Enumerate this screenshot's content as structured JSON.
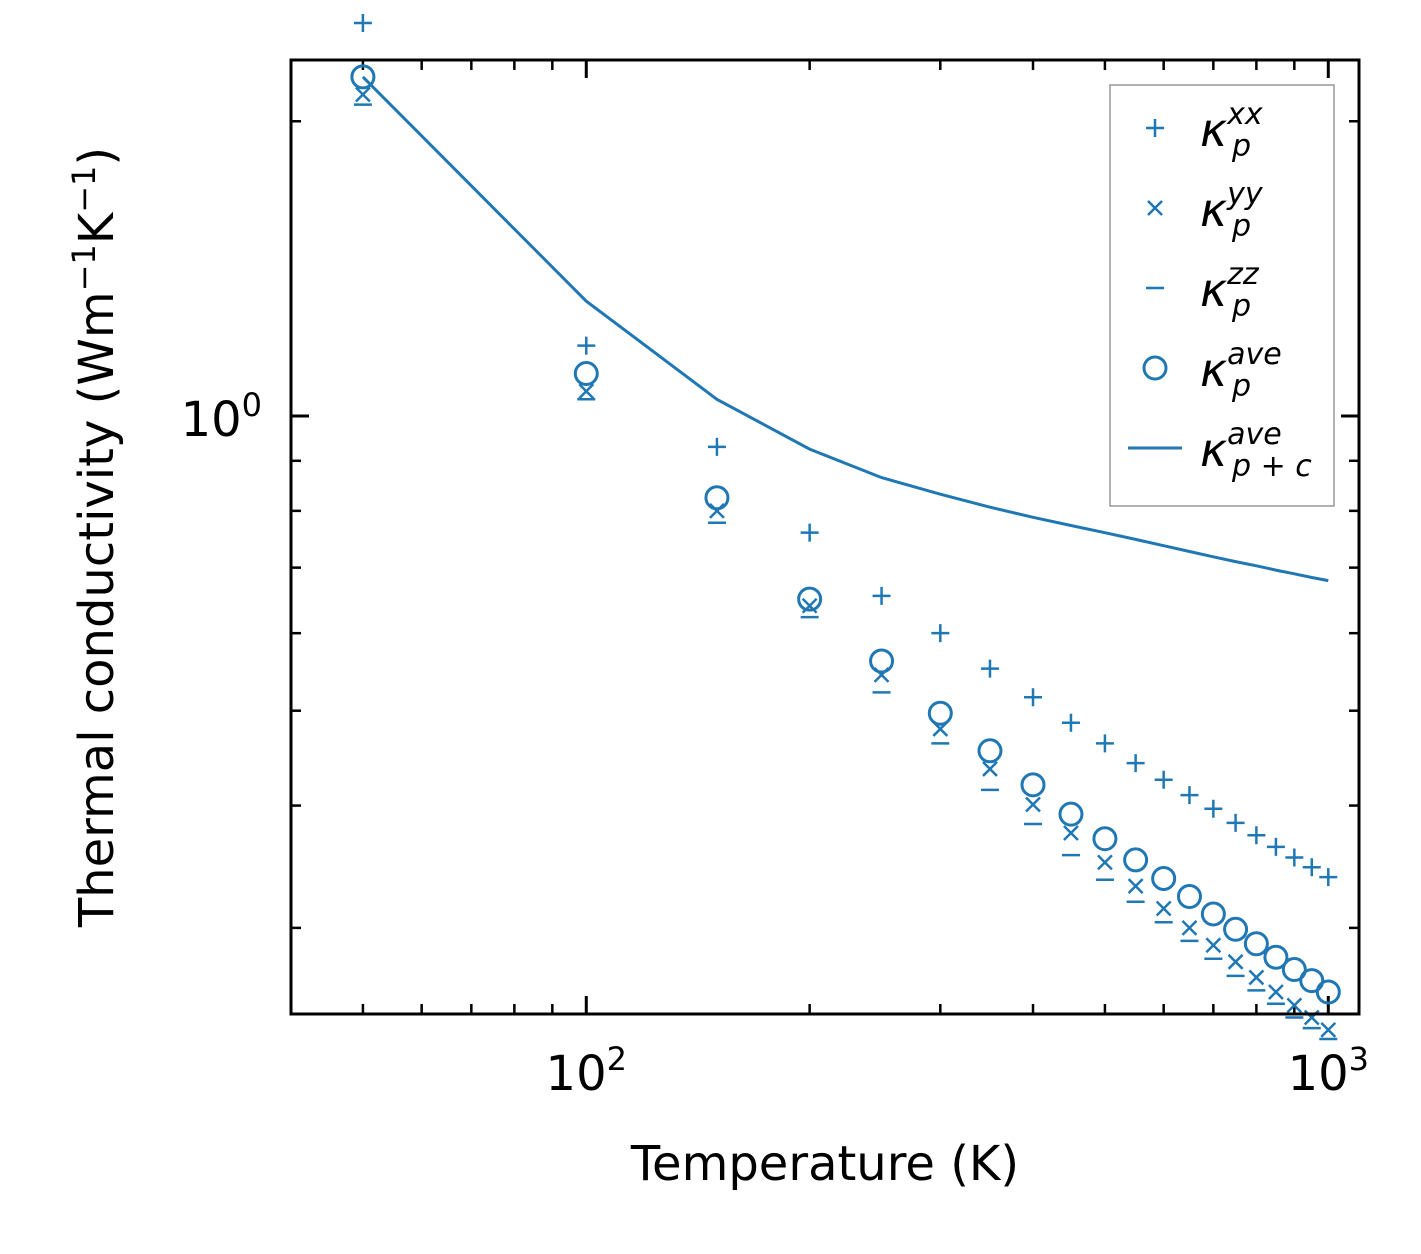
{
  "chart_data": {
    "type": "scatter",
    "x_scale": "log",
    "y_scale": "log",
    "xlabel": "Temperature (K)",
    "ylabel_main": "Thermal conductivity (Wm",
    "ylabel_exp1": "−1",
    "ylabel_mid": "K",
    "ylabel_exp2": "−1",
    "ylabel_end": ")",
    "xlim": [
      40,
      1100
    ],
    "ylim": [
      0.245,
      2.31
    ],
    "x_ticks": [
      {
        "value": 100,
        "base": "10",
        "exp": "2"
      },
      {
        "value": 1000,
        "base": "10",
        "exp": "3"
      }
    ],
    "y_ticks": [
      {
        "value": 1.0,
        "base": "10",
        "exp": "0"
      }
    ],
    "legend_position": "top-right",
    "x": [
      50,
      100,
      150,
      200,
      250,
      300,
      350,
      400,
      450,
      500,
      550,
      600,
      650,
      700,
      750,
      800,
      850,
      900,
      950,
      1000
    ],
    "series": [
      {
        "name": "xx",
        "marker": "plus",
        "values": [
          2.52,
          1.18,
          0.93,
          0.76,
          0.655,
          0.6,
          0.552,
          0.516,
          0.486,
          0.463,
          0.442,
          0.425,
          0.41,
          0.397,
          0.384,
          0.373,
          0.363,
          0.354,
          0.346,
          0.338
        ]
      },
      {
        "name": "yy",
        "marker": "x",
        "values": [
          2.13,
          1.06,
          0.8,
          0.64,
          0.544,
          0.479,
          0.436,
          0.401,
          0.375,
          0.35,
          0.331,
          0.314,
          0.3,
          0.288,
          0.277,
          0.267,
          0.258,
          0.25,
          0.243,
          0.236
        ]
      },
      {
        "name": "zz",
        "marker": "hline",
        "values": [
          2.08,
          1.04,
          0.778,
          0.623,
          0.522,
          0.463,
          0.415,
          0.383,
          0.356,
          0.336,
          0.319,
          0.304,
          0.291,
          0.279,
          0.268,
          0.259,
          0.251,
          0.243,
          0.237,
          0.231
        ]
      },
      {
        "name": "ave",
        "marker": "circle",
        "values": [
          2.22,
          1.105,
          0.825,
          0.65,
          0.562,
          0.497,
          0.455,
          0.42,
          0.392,
          0.37,
          0.352,
          0.337,
          0.323,
          0.31,
          0.299,
          0.289,
          0.28,
          0.272,
          0.265,
          0.258
        ]
      },
      {
        "name": "ave_pc",
        "marker": "line",
        "values": [
          2.22,
          1.31,
          1.04,
          0.925,
          0.865,
          0.832,
          0.807,
          0.788,
          0.773,
          0.76,
          0.748,
          0.737,
          0.727,
          0.718,
          0.71,
          0.703,
          0.696,
          0.69,
          0.684,
          0.679
        ]
      }
    ],
    "legend": [
      {
        "marker": "plus",
        "base": "κ",
        "sup": "xx",
        "sub": "p"
      },
      {
        "marker": "x",
        "base": "κ",
        "sup": "yy",
        "sub": "p"
      },
      {
        "marker": "hline",
        "base": "κ",
        "sup": "zz",
        "sub": "p"
      },
      {
        "marker": "circle",
        "base": "κ",
        "sup": "ave",
        "sub": "p"
      },
      {
        "marker": "line",
        "base": "κ",
        "sup": "ave",
        "sub": "p + c"
      }
    ],
    "colors": {
      "series": "#1f77b4",
      "axis": "#000000",
      "legend_border": "#999999"
    }
  }
}
